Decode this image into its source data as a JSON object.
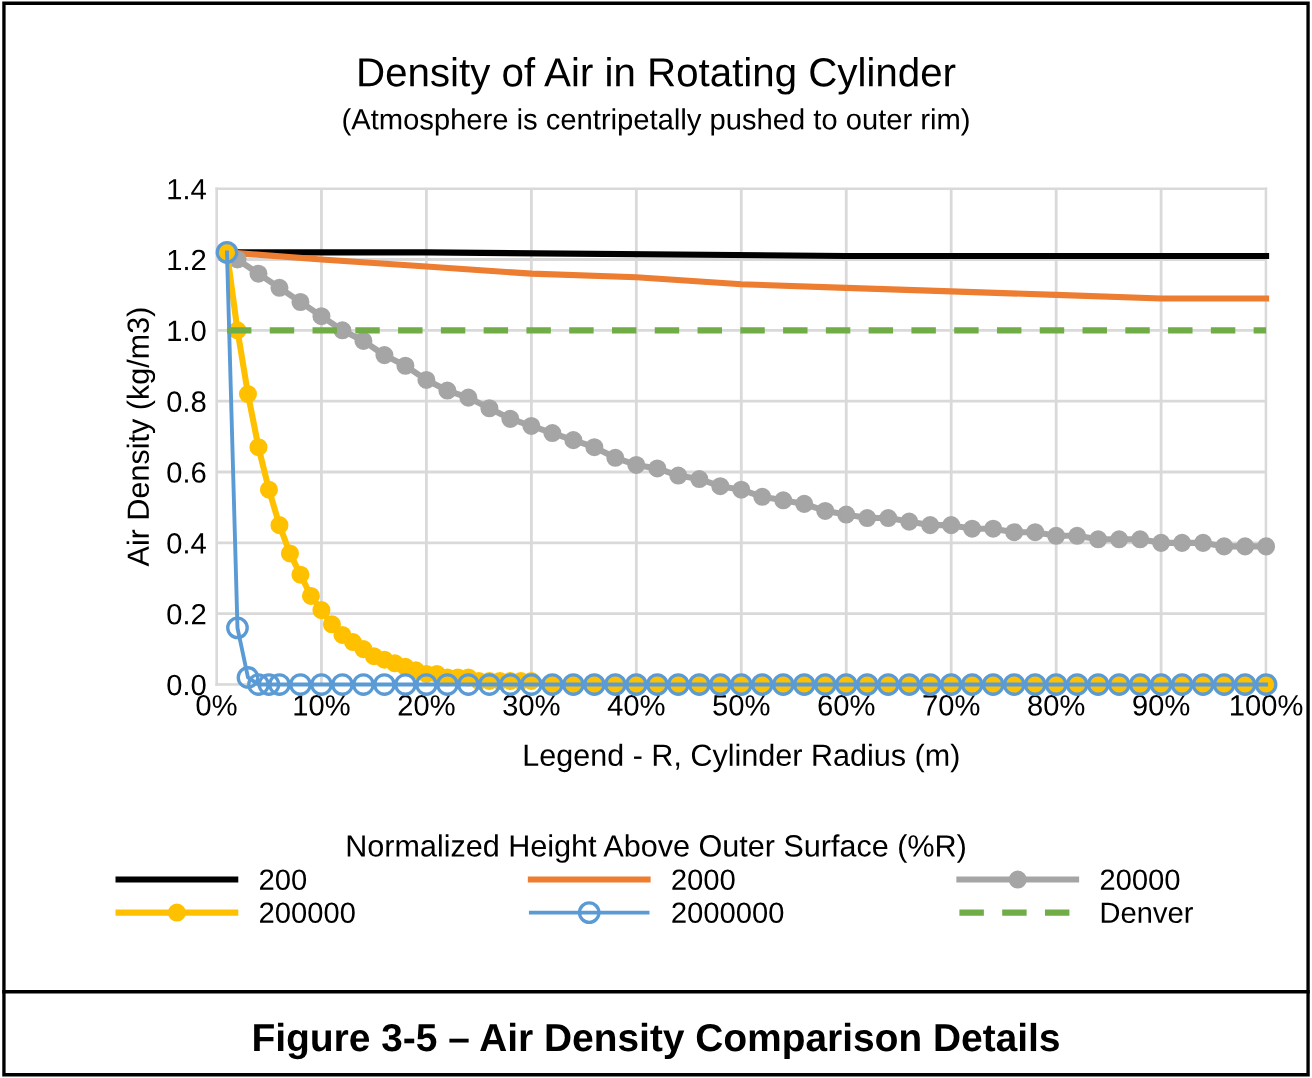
{
  "chart_data": {
    "type": "line",
    "title": "Density of Air in Rotating Cylinder",
    "subtitle": "(Atmosphere is centripetally pushed to outer rim)",
    "xlabel": "Legend - R, Cylinder Radius (m)",
    "ylabel": "Air Density (kg/m3)",
    "legend_title": "Normalized Height Above Outer Surface (%R)",
    "annotations": [
      "Figure 3-5 – Air Density Comparison Details"
    ],
    "xlim": [
      0,
      100
    ],
    "ylim": [
      0,
      1.4
    ],
    "xticks": [
      {
        "value": 0,
        "label": "0%"
      },
      {
        "value": 10,
        "label": "10%"
      },
      {
        "value": 20,
        "label": "20%"
      },
      {
        "value": 30,
        "label": "30%"
      },
      {
        "value": 40,
        "label": "40%"
      },
      {
        "value": 50,
        "label": "50%"
      },
      {
        "value": 60,
        "label": "60%"
      },
      {
        "value": 70,
        "label": "70%"
      },
      {
        "value": 80,
        "label": "80%"
      },
      {
        "value": 90,
        "label": "90%"
      },
      {
        "value": 100,
        "label": "100%"
      }
    ],
    "yticks": [
      {
        "value": 0,
        "label": "0.0"
      },
      {
        "value": 0.2,
        "label": "0.2"
      },
      {
        "value": 0.4,
        "label": "0.4"
      },
      {
        "value": 0.6,
        "label": "0.6"
      },
      {
        "value": 0.8,
        "label": "0.8"
      },
      {
        "value": 1.0,
        "label": "1.0"
      },
      {
        "value": 1.2,
        "label": "1.2"
      },
      {
        "value": 1.4,
        "label": "1.4"
      }
    ],
    "grid": true,
    "legend": "bottom",
    "series": [
      {
        "name": "200",
        "color": "#000000",
        "marker": "none",
        "x": [
          1,
          20,
          60,
          100
        ],
        "values": [
          1.22,
          1.22,
          1.21,
          1.21
        ]
      },
      {
        "name": "2000",
        "color": "#ed7d31",
        "marker": "none",
        "x": [
          1,
          10,
          20,
          30,
          40,
          50,
          60,
          70,
          80,
          90,
          100
        ],
        "values": [
          1.22,
          1.2,
          1.18,
          1.16,
          1.15,
          1.13,
          1.12,
          1.11,
          1.1,
          1.09,
          1.09
        ]
      },
      {
        "name": "20000",
        "color": "#a5a5a5",
        "marker": "circle",
        "x": [
          1,
          2,
          4,
          6,
          8,
          10,
          12,
          14,
          16,
          18,
          20,
          22,
          24,
          26,
          28,
          30,
          32,
          34,
          36,
          38,
          40,
          42,
          44,
          46,
          48,
          50,
          52,
          54,
          56,
          58,
          60,
          62,
          64,
          66,
          68,
          70,
          72,
          74,
          76,
          78,
          80,
          82,
          84,
          86,
          88,
          90,
          92,
          94,
          96,
          98,
          100
        ],
        "values": [
          1.22,
          1.2,
          1.16,
          1.12,
          1.08,
          1.04,
          1.0,
          0.97,
          0.93,
          0.9,
          0.86,
          0.83,
          0.81,
          0.78,
          0.75,
          0.73,
          0.71,
          0.69,
          0.67,
          0.64,
          0.62,
          0.61,
          0.59,
          0.58,
          0.56,
          0.55,
          0.53,
          0.52,
          0.51,
          0.49,
          0.48,
          0.47,
          0.47,
          0.46,
          0.45,
          0.45,
          0.44,
          0.44,
          0.43,
          0.43,
          0.42,
          0.42,
          0.41,
          0.41,
          0.41,
          0.4,
          0.4,
          0.4,
          0.39,
          0.39,
          0.39
        ]
      },
      {
        "name": "200000",
        "color": "#ffc000",
        "marker": "circle",
        "x": [
          1,
          2,
          3,
          4,
          5,
          6,
          7,
          8,
          9,
          10,
          11,
          12,
          13,
          14,
          15,
          16,
          17,
          18,
          19,
          20,
          21,
          22,
          23,
          24,
          25,
          26,
          27,
          28,
          29,
          30,
          32,
          34,
          36,
          38,
          40,
          42,
          44,
          46,
          48,
          50,
          52,
          54,
          56,
          58,
          60,
          62,
          64,
          66,
          68,
          70,
          72,
          74,
          76,
          78,
          80,
          82,
          84,
          86,
          88,
          90,
          92,
          94,
          96,
          98,
          100
        ],
        "values": [
          1.22,
          1.0,
          0.82,
          0.67,
          0.55,
          0.45,
          0.37,
          0.31,
          0.25,
          0.21,
          0.17,
          0.14,
          0.12,
          0.1,
          0.08,
          0.07,
          0.06,
          0.05,
          0.04,
          0.03,
          0.03,
          0.02,
          0.02,
          0.02,
          0.01,
          0.01,
          0.01,
          0.01,
          0.01,
          0.01,
          0,
          0,
          0,
          0,
          0,
          0,
          0,
          0,
          0,
          0,
          0,
          0,
          0,
          0,
          0,
          0,
          0,
          0,
          0,
          0,
          0,
          0,
          0,
          0,
          0,
          0,
          0,
          0,
          0,
          0,
          0,
          0,
          0,
          0,
          0
        ]
      },
      {
        "name": "2000000",
        "color": "#5b9bd5",
        "marker": "circle",
        "x": [
          1,
          2,
          3,
          4,
          5,
          6,
          8,
          10,
          12,
          14,
          16,
          18,
          20,
          22,
          24,
          26,
          28,
          30,
          32,
          34,
          36,
          38,
          40,
          42,
          44,
          46,
          48,
          50,
          52,
          54,
          56,
          58,
          60,
          62,
          64,
          66,
          68,
          70,
          72,
          74,
          76,
          78,
          80,
          82,
          84,
          86,
          88,
          90,
          92,
          94,
          96,
          98,
          100
        ],
        "values": [
          1.22,
          0.16,
          0.02,
          0,
          0,
          0,
          0,
          0,
          0,
          0,
          0,
          0,
          0,
          0,
          0,
          0,
          0,
          0,
          0,
          0,
          0,
          0,
          0,
          0,
          0,
          0,
          0,
          0,
          0,
          0,
          0,
          0,
          0,
          0,
          0,
          0,
          0,
          0,
          0,
          0,
          0,
          0,
          0,
          0,
          0,
          0,
          0,
          0,
          0,
          0,
          0,
          0,
          0
        ]
      },
      {
        "name": "Denver",
        "color": "#70ad47",
        "marker": "none",
        "line_style": "dashed",
        "x": [
          1,
          100
        ],
        "values": [
          1.0,
          1.0
        ]
      }
    ]
  }
}
